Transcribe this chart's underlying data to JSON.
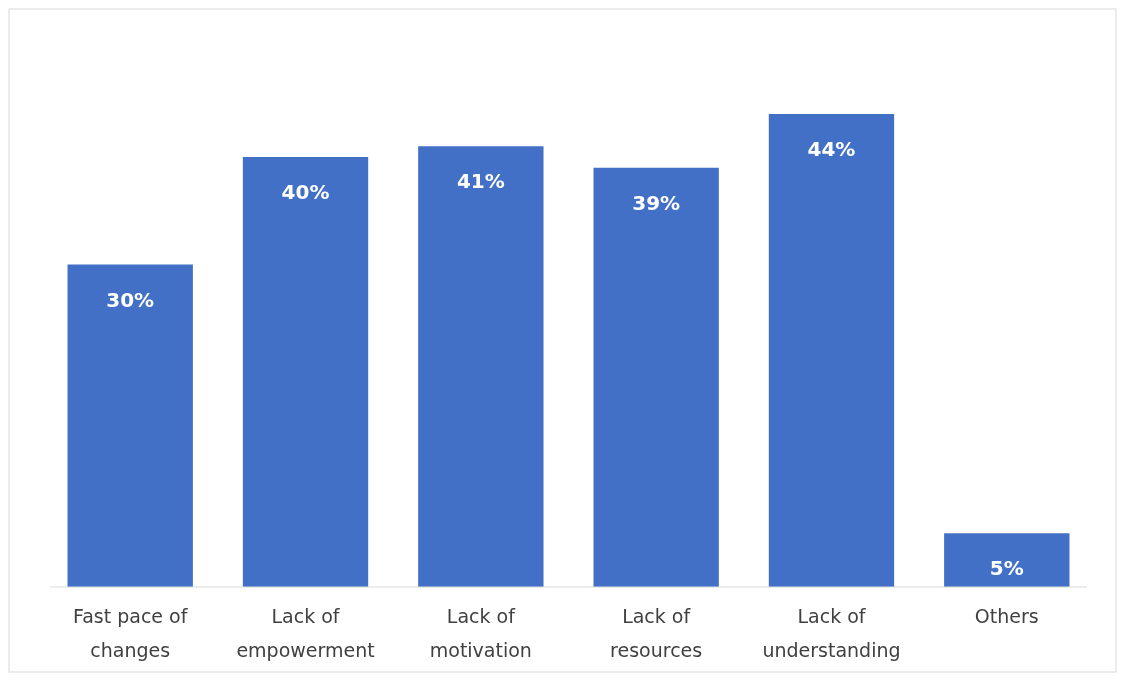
{
  "chart_data": {
    "type": "bar",
    "categories": [
      "Fast pace of changes",
      "Lack of empowerment",
      "Lack of motivation",
      "Lack of resources",
      "Lack of understanding",
      "Others"
    ],
    "values": [
      30,
      40,
      41,
      39,
      44,
      5
    ],
    "value_labels": [
      "30%",
      "40%",
      "41%",
      "39%",
      "44%",
      "5%"
    ],
    "color": "#4270c6"
  }
}
